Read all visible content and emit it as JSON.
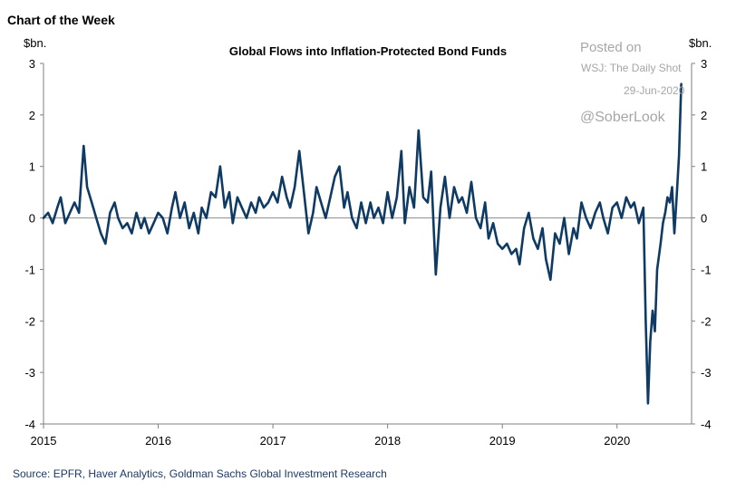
{
  "header": {
    "label": "Chart of the Week"
  },
  "watermark": {
    "posted_on": "Posted on",
    "publication": "WSJ: The Daily Shot",
    "date": "29-Jun-2020",
    "handle": "@SoberLook"
  },
  "source": "Source: EPFR, Haver Analytics, Goldman Sachs Global Investment Research",
  "chart_data": {
    "type": "line",
    "title": "Global Flows into Inflation-Protected Bond Funds",
    "ylabel_left": "$bn.",
    "ylabel_right": "$bn.",
    "ylim": [
      -4,
      3
    ],
    "yticks": [
      3,
      2,
      1,
      0,
      -1,
      -2,
      -3,
      -4
    ],
    "xlim": [
      2015.0,
      2020.65
    ],
    "xticks": [
      2015,
      2016,
      2017,
      2018,
      2019,
      2020
    ],
    "xtick_labels": [
      "2015",
      "2016",
      "2017",
      "2018",
      "2019",
      "2020"
    ],
    "zero_line": true,
    "grid": false,
    "line_color": "#0e3a63",
    "series": [
      {
        "x": [
          2015.0,
          2015.04,
          2015.08,
          2015.12,
          2015.15,
          2015.19,
          2015.23,
          2015.27,
          2015.31,
          2015.35,
          2015.38,
          2015.42,
          2015.46,
          2015.5,
          2015.54,
          2015.58,
          2015.62,
          2015.65,
          2015.69,
          2015.73,
          2015.77,
          2015.81,
          2015.85,
          2015.88,
          2015.92,
          2015.96,
          2016.0,
          2016.04,
          2016.08,
          2016.12,
          2016.15,
          2016.19,
          2016.23,
          2016.27,
          2016.31,
          2016.35,
          2016.38,
          2016.42,
          2016.46,
          2016.5,
          2016.54,
          2016.58,
          2016.62,
          2016.65,
          2016.69,
          2016.73,
          2016.77,
          2016.81,
          2016.85,
          2016.88,
          2016.92,
          2016.96,
          2017.0,
          2017.04,
          2017.08,
          2017.12,
          2017.15,
          2017.19,
          2017.23,
          2017.27,
          2017.31,
          2017.35,
          2017.38,
          2017.42,
          2017.46,
          2017.5,
          2017.54,
          2017.58,
          2017.62,
          2017.65,
          2017.69,
          2017.73,
          2017.77,
          2017.81,
          2017.85,
          2017.88,
          2017.92,
          2017.96,
          2018.0,
          2018.04,
          2018.08,
          2018.12,
          2018.15,
          2018.19,
          2018.23,
          2018.27,
          2018.31,
          2018.35,
          2018.38,
          2018.42,
          2018.46,
          2018.5,
          2018.54,
          2018.58,
          2018.62,
          2018.65,
          2018.69,
          2018.73,
          2018.77,
          2018.81,
          2018.85,
          2018.88,
          2018.92,
          2018.96,
          2019.0,
          2019.04,
          2019.08,
          2019.12,
          2019.15,
          2019.19,
          2019.23,
          2019.27,
          2019.31,
          2019.35,
          2019.38,
          2019.42,
          2019.46,
          2019.5,
          2019.54,
          2019.58,
          2019.62,
          2019.65,
          2019.69,
          2019.73,
          2019.77,
          2019.81,
          2019.85,
          2019.88,
          2019.92,
          2019.96,
          2020.0,
          2020.04,
          2020.08,
          2020.12,
          2020.15,
          2020.19,
          2020.23,
          2020.25,
          2020.27,
          2020.29,
          2020.31,
          2020.33,
          2020.35,
          2020.38,
          2020.4,
          2020.42,
          2020.44,
          2020.46,
          2020.48,
          2020.5,
          2020.52,
          2020.54,
          2020.56
        ],
        "y": [
          0.0,
          0.1,
          -0.1,
          0.2,
          0.4,
          -0.1,
          0.1,
          0.3,
          0.1,
          1.4,
          0.6,
          0.3,
          0.0,
          -0.3,
          -0.5,
          0.1,
          0.3,
          0.0,
          -0.2,
          -0.1,
          -0.3,
          0.1,
          -0.2,
          0.0,
          -0.3,
          -0.1,
          0.1,
          0.0,
          -0.3,
          0.2,
          0.5,
          0.0,
          0.3,
          -0.2,
          0.1,
          -0.3,
          0.2,
          0.0,
          0.5,
          0.4,
          1.0,
          0.2,
          0.5,
          -0.1,
          0.4,
          0.2,
          0.0,
          0.3,
          0.1,
          0.4,
          0.2,
          0.3,
          0.5,
          0.3,
          0.8,
          0.4,
          0.2,
          0.6,
          1.3,
          0.5,
          -0.3,
          0.1,
          0.6,
          0.3,
          0.0,
          0.4,
          0.8,
          1.0,
          0.2,
          0.5,
          0.0,
          -0.2,
          0.3,
          -0.1,
          0.3,
          0.0,
          0.2,
          -0.1,
          0.5,
          0.0,
          0.4,
          1.3,
          -0.1,
          0.6,
          0.2,
          1.7,
          0.4,
          0.3,
          0.9,
          -1.1,
          0.2,
          0.8,
          0.0,
          0.6,
          0.3,
          0.4,
          0.1,
          0.7,
          0.0,
          -0.2,
          0.3,
          -0.4,
          -0.1,
          -0.5,
          -0.6,
          -0.5,
          -0.7,
          -0.6,
          -0.9,
          -0.2,
          0.1,
          -0.4,
          -0.6,
          -0.2,
          -0.8,
          -1.2,
          -0.3,
          -0.5,
          0.0,
          -0.7,
          -0.2,
          -0.4,
          0.3,
          0.0,
          -0.2,
          0.1,
          0.3,
          0.0,
          -0.3,
          0.2,
          0.3,
          0.0,
          0.4,
          0.2,
          0.3,
          -0.1,
          0.2,
          -2.0,
          -3.6,
          -2.4,
          -1.8,
          -2.2,
          -1.0,
          -0.5,
          -0.1,
          0.1,
          0.4,
          0.3,
          0.6,
          -0.3,
          0.4,
          1.2,
          2.6
        ]
      }
    ]
  }
}
